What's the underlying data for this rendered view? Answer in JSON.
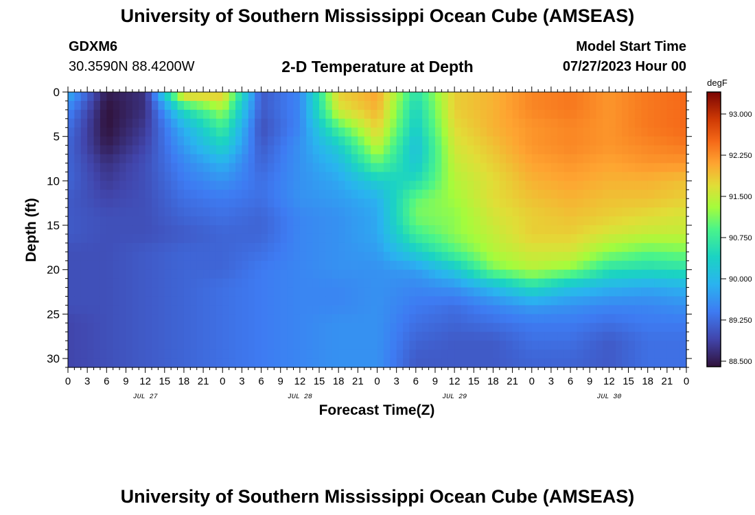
{
  "header": {
    "title": "University of Southern Mississippi Ocean Cube (AMSEAS)",
    "station": "GDXM6",
    "coords": "30.3590N  88.4200W",
    "subtitle": "2-D Temperature at Depth",
    "start_label": "Model Start Time",
    "start_value": "07/27/2023 Hour 00"
  },
  "footer": {
    "title": "University of Southern Mississippi Ocean Cube (AMSEAS)"
  },
  "chart_data": {
    "type": "heatmap",
    "xlabel": "Forecast Time(Z)",
    "ylabel": "Depth (ft)",
    "x_unit": "hours since 07/27/2023 00Z",
    "xlim": [
      0,
      96
    ],
    "ylim": [
      0,
      31
    ],
    "y_inverted": true,
    "x_tick_labels": [
      "0",
      "3",
      "6",
      "9",
      "12",
      "15",
      "18",
      "21",
      "0",
      "3",
      "6",
      "9",
      "12",
      "15",
      "18",
      "21",
      "0",
      "3",
      "6",
      "9",
      "12",
      "15",
      "18",
      "21",
      "0",
      "3",
      "6",
      "9",
      "12",
      "15",
      "18",
      "21",
      "0"
    ],
    "y_ticks": [
      0,
      5,
      10,
      15,
      20,
      25,
      30
    ],
    "date_labels": [
      "JUL 27",
      "JUL 28",
      "JUL 29",
      "JUL 30"
    ],
    "colorbar": {
      "label": "degF",
      "range": [
        88.4,
        93.4
      ],
      "ticks": [
        "93.000",
        "92.250",
        "91.500",
        "90.750",
        "90.000",
        "89.250",
        "88.500"
      ]
    },
    "depths_ft": [
      0,
      2,
      4,
      6,
      8,
      10,
      12,
      14,
      16,
      18,
      20,
      22,
      24,
      26,
      28,
      30
    ],
    "times_hr": [
      0,
      6,
      12,
      18,
      24,
      30,
      36,
      42,
      48,
      54,
      60,
      66,
      72,
      78,
      84,
      90,
      96
    ],
    "values_degF": [
      [
        89.9,
        88.5,
        88.7,
        92.0,
        91.9,
        89.1,
        89.5,
        91.8,
        92.1,
        90.6,
        91.8,
        92.0,
        92.3,
        92.4,
        92.2,
        92.4,
        92.5
      ],
      [
        89.5,
        88.4,
        88.7,
        90.5,
        91.3,
        89.1,
        89.5,
        91.6,
        92.0,
        90.4,
        91.8,
        92.0,
        92.3,
        92.4,
        92.2,
        92.4,
        92.5
      ],
      [
        89.3,
        88.4,
        88.8,
        89.9,
        90.8,
        89.0,
        89.5,
        90.9,
        91.8,
        90.3,
        91.7,
        92.0,
        92.2,
        92.3,
        92.2,
        92.4,
        92.5
      ],
      [
        89.2,
        88.5,
        88.9,
        89.7,
        90.4,
        89.1,
        89.6,
        90.3,
        91.5,
        90.1,
        91.6,
        91.9,
        92.2,
        92.3,
        92.2,
        92.3,
        92.4
      ],
      [
        89.2,
        88.7,
        89.0,
        89.5,
        89.9,
        89.2,
        89.6,
        90.0,
        91.0,
        90.2,
        91.5,
        91.8,
        92.1,
        92.2,
        92.1,
        92.2,
        92.2
      ],
      [
        89.2,
        88.8,
        89.0,
        89.4,
        89.6,
        89.3,
        89.6,
        89.8,
        90.3,
        90.5,
        91.4,
        91.7,
        92.0,
        92.1,
        92.0,
        92.0,
        91.9
      ],
      [
        89.1,
        88.9,
        89.0,
        89.3,
        89.4,
        89.3,
        89.6,
        89.7,
        89.9,
        91.0,
        91.3,
        91.7,
        91.9,
        92.0,
        91.9,
        91.9,
        91.8
      ],
      [
        89.1,
        89.0,
        89.0,
        89.2,
        89.3,
        89.2,
        89.5,
        89.6,
        89.8,
        91.1,
        91.2,
        91.6,
        91.8,
        91.9,
        91.8,
        91.7,
        91.6
      ],
      [
        89.1,
        89.0,
        89.0,
        89.1,
        89.2,
        89.2,
        89.5,
        89.6,
        89.8,
        90.8,
        91.2,
        91.5,
        91.8,
        91.8,
        91.6,
        91.5,
        91.5
      ],
      [
        89.0,
        89.0,
        89.1,
        89.2,
        89.2,
        89.3,
        89.5,
        89.6,
        89.7,
        90.3,
        90.9,
        91.4,
        91.6,
        91.6,
        91.2,
        91.0,
        91.1
      ],
      [
        89.0,
        89.0,
        89.1,
        89.2,
        89.2,
        89.4,
        89.5,
        89.6,
        89.6,
        89.7,
        90.2,
        91.1,
        91.4,
        91.2,
        90.6,
        90.5,
        90.6
      ],
      [
        89.0,
        89.0,
        89.1,
        89.2,
        89.3,
        89.4,
        89.5,
        89.5,
        89.6,
        89.5,
        89.6,
        90.0,
        90.5,
        90.1,
        89.9,
        89.8,
        89.9
      ],
      [
        89.0,
        89.0,
        89.1,
        89.2,
        89.3,
        89.4,
        89.5,
        89.5,
        89.6,
        89.4,
        89.3,
        89.5,
        89.7,
        89.6,
        89.5,
        89.5,
        89.6
      ],
      [
        88.9,
        89.0,
        89.1,
        89.2,
        89.3,
        89.4,
        89.5,
        89.6,
        89.6,
        89.3,
        89.2,
        89.3,
        89.4,
        89.4,
        89.3,
        89.4,
        89.4
      ],
      [
        88.9,
        89.0,
        89.1,
        89.2,
        89.3,
        89.4,
        89.5,
        89.6,
        89.6,
        89.2,
        89.1,
        89.1,
        89.3,
        89.3,
        89.1,
        89.3,
        89.3
      ],
      [
        88.9,
        89.0,
        89.1,
        89.2,
        89.3,
        89.4,
        89.5,
        89.6,
        89.6,
        89.1,
        89.1,
        89.1,
        89.2,
        89.2,
        89.1,
        89.3,
        89.3
      ]
    ]
  }
}
